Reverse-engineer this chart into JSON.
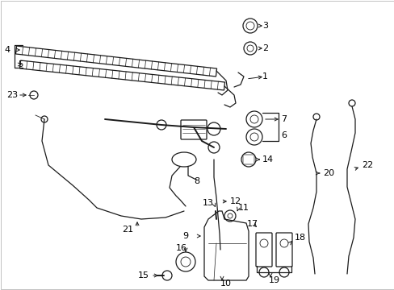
{
  "background_color": "#ffffff",
  "fig_width": 4.89,
  "fig_height": 3.6,
  "dpi": 100,
  "line_color": "#1a1a1a",
  "label_color": "#000000",
  "border_color": "#cccccc"
}
